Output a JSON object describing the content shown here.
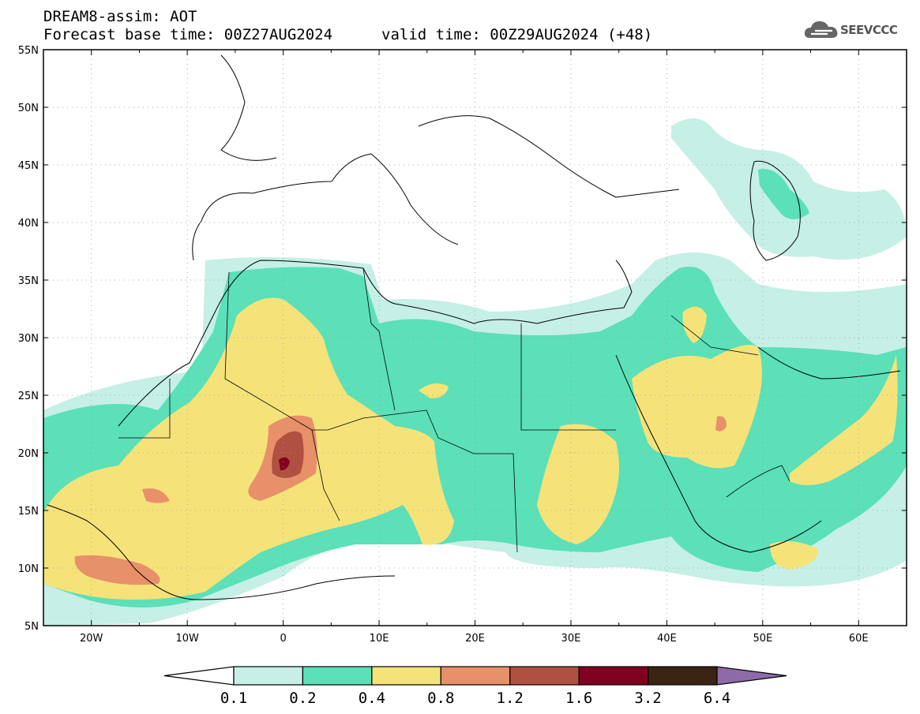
{
  "header": {
    "line1": "DREAM8-assim: AOT",
    "base_time": "Forecast base time: 00Z27AUG2024",
    "valid_time": "valid time: 00Z29AUG2024 (+48)"
  },
  "logo": {
    "text": "SEEVCCC",
    "icon": "cloud-icon"
  },
  "map": {
    "lon_range": [
      -25,
      65
    ],
    "lat_range": [
      5,
      55
    ],
    "lat_ticks": [
      {
        "value": 55,
        "label": "55N"
      },
      {
        "value": 50,
        "label": "50N"
      },
      {
        "value": 45,
        "label": "45N"
      },
      {
        "value": 40,
        "label": "40N"
      },
      {
        "value": 35,
        "label": "35N"
      },
      {
        "value": 30,
        "label": "30N"
      },
      {
        "value": 25,
        "label": "25N"
      },
      {
        "value": 20,
        "label": "20N"
      },
      {
        "value": 15,
        "label": "15N"
      },
      {
        "value": 10,
        "label": "10N"
      },
      {
        "value": 5,
        "label": "5N"
      }
    ],
    "lon_ticks": [
      {
        "value": -20,
        "label": "20W"
      },
      {
        "value": -10,
        "label": "10W"
      },
      {
        "value": 0,
        "label": "0"
      },
      {
        "value": 10,
        "label": "10E"
      },
      {
        "value": 20,
        "label": "20E"
      },
      {
        "value": 30,
        "label": "30E"
      },
      {
        "value": 40,
        "label": "40E"
      },
      {
        "value": 50,
        "label": "50E"
      },
      {
        "value": 60,
        "label": "60E"
      }
    ],
    "grid": "dotted"
  },
  "colorbar": {
    "labels": [
      "0.1",
      "0.2",
      "0.4",
      "0.8",
      "1.2",
      "1.6",
      "3.2",
      "6.4"
    ],
    "colors": [
      "#c6efe6",
      "#5be0b8",
      "#f5e37a",
      "#e8906a",
      "#b05040",
      "#800020",
      "#3b2414",
      "#8e6aa8"
    ],
    "under_color": "#ffffff"
  },
  "colors": {
    "level1": "#c6efe6",
    "level2": "#5be0b8",
    "level3": "#f5e37a",
    "level4": "#e8906a",
    "level5": "#b05040",
    "level6": "#800020"
  }
}
